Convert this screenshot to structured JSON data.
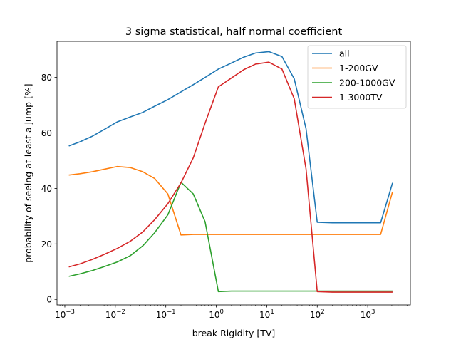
{
  "chart_data": {
    "type": "line",
    "title": "3 sigma statistical, half normal coefficient",
    "xlabel": "break Rigidity [TV]",
    "ylabel": "probability of seeing at least a jump [%]",
    "xscale": "log",
    "xlim": [
      0.0007,
      7000
    ],
    "ylim": [
      -2,
      93
    ],
    "x_ticks": [
      {
        "value": 0.001,
        "base": "10",
        "exp": "−3"
      },
      {
        "value": 0.01,
        "base": "10",
        "exp": "−2"
      },
      {
        "value": 0.1,
        "base": "10",
        "exp": "−1"
      },
      {
        "value": 1,
        "base": "10",
        "exp": "0"
      },
      {
        "value": 10,
        "base": "10",
        "exp": "1"
      },
      {
        "value": 100,
        "base": "10",
        "exp": "2"
      },
      {
        "value": 1000,
        "base": "10",
        "exp": "3"
      }
    ],
    "y_ticks": [
      {
        "value": 0,
        "label": "0"
      },
      {
        "value": 20,
        "label": "20"
      },
      {
        "value": 40,
        "label": "40"
      },
      {
        "value": 60,
        "label": "60"
      },
      {
        "value": 80,
        "label": "80"
      }
    ],
    "legend_position": "top-right",
    "series": [
      {
        "name": "all",
        "color": "#1f77b4",
        "points": [
          [
            0.0012,
            55.3
          ],
          [
            0.002,
            56.8
          ],
          [
            0.0035,
            58.8
          ],
          [
            0.006,
            61.2
          ],
          [
            0.011,
            64.0
          ],
          [
            0.02,
            65.8
          ],
          [
            0.035,
            67.4
          ],
          [
            0.06,
            69.6
          ],
          [
            0.11,
            72.0
          ],
          [
            0.2,
            74.8
          ],
          [
            0.35,
            77.4
          ],
          [
            0.6,
            80.0
          ],
          [
            1.1,
            83.0
          ],
          [
            2,
            85.2
          ],
          [
            3.5,
            87.3
          ],
          [
            6,
            88.8
          ],
          [
            11,
            89.3
          ],
          [
            20,
            87.5
          ],
          [
            35,
            79.5
          ],
          [
            60,
            61.5
          ],
          [
            100,
            27.8
          ],
          [
            200,
            27.6
          ],
          [
            350,
            27.6
          ],
          [
            600,
            27.6
          ],
          [
            1100,
            27.6
          ],
          [
            1800,
            27.6
          ],
          [
            3100,
            42.0
          ]
        ]
      },
      {
        "name": "1-200GV",
        "color": "#ff7f0e",
        "points": [
          [
            0.0012,
            44.8
          ],
          [
            0.002,
            45.3
          ],
          [
            0.0035,
            46.0
          ],
          [
            0.006,
            46.9
          ],
          [
            0.011,
            47.9
          ],
          [
            0.02,
            47.5
          ],
          [
            0.035,
            46.0
          ],
          [
            0.06,
            43.6
          ],
          [
            0.11,
            38.0
          ],
          [
            0.2,
            23.2
          ],
          [
            0.35,
            23.4
          ],
          [
            0.6,
            23.4
          ],
          [
            1.1,
            23.4
          ],
          [
            2,
            23.4
          ],
          [
            3.5,
            23.4
          ],
          [
            6,
            23.4
          ],
          [
            11,
            23.4
          ],
          [
            20,
            23.4
          ],
          [
            35,
            23.4
          ],
          [
            60,
            23.4
          ],
          [
            100,
            23.4
          ],
          [
            200,
            23.4
          ],
          [
            350,
            23.4
          ],
          [
            600,
            23.4
          ],
          [
            1100,
            23.4
          ],
          [
            1800,
            23.4
          ],
          [
            3100,
            38.8
          ]
        ]
      },
      {
        "name": "200-1000GV",
        "color": "#2ca02c",
        "points": [
          [
            0.0012,
            8.3
          ],
          [
            0.002,
            9.2
          ],
          [
            0.0035,
            10.4
          ],
          [
            0.006,
            11.8
          ],
          [
            0.011,
            13.5
          ],
          [
            0.02,
            15.8
          ],
          [
            0.035,
            19.3
          ],
          [
            0.06,
            24.0
          ],
          [
            0.11,
            30.5
          ],
          [
            0.2,
            42.2
          ],
          [
            0.35,
            38.0
          ],
          [
            0.6,
            28.0
          ],
          [
            1.1,
            2.8
          ],
          [
            2,
            3.0
          ],
          [
            3.5,
            3.0
          ],
          [
            6,
            3.0
          ],
          [
            11,
            3.0
          ],
          [
            20,
            3.0
          ],
          [
            35,
            3.0
          ],
          [
            60,
            3.0
          ],
          [
            100,
            3.0
          ],
          [
            200,
            3.0
          ],
          [
            350,
            3.0
          ],
          [
            600,
            3.0
          ],
          [
            1100,
            3.0
          ],
          [
            1800,
            3.0
          ],
          [
            3100,
            3.0
          ]
        ]
      },
      {
        "name": "1-3000TV",
        "color": "#d62728",
        "points": [
          [
            0.0012,
            11.7
          ],
          [
            0.002,
            12.8
          ],
          [
            0.0035,
            14.4
          ],
          [
            0.006,
            16.2
          ],
          [
            0.011,
            18.4
          ],
          [
            0.02,
            21.0
          ],
          [
            0.035,
            24.3
          ],
          [
            0.06,
            28.7
          ],
          [
            0.11,
            34.5
          ],
          [
            0.2,
            42.0
          ],
          [
            0.35,
            51.0
          ],
          [
            0.6,
            63.5
          ],
          [
            1.1,
            76.6
          ],
          [
            2,
            79.8
          ],
          [
            3.5,
            82.8
          ],
          [
            6,
            84.8
          ],
          [
            11,
            85.5
          ],
          [
            20,
            83.0
          ],
          [
            35,
            72.3
          ],
          [
            60,
            47.0
          ],
          [
            100,
            2.8
          ],
          [
            200,
            2.6
          ],
          [
            350,
            2.6
          ],
          [
            600,
            2.6
          ],
          [
            1100,
            2.6
          ],
          [
            1800,
            2.6
          ],
          [
            3100,
            2.6
          ]
        ]
      }
    ]
  }
}
